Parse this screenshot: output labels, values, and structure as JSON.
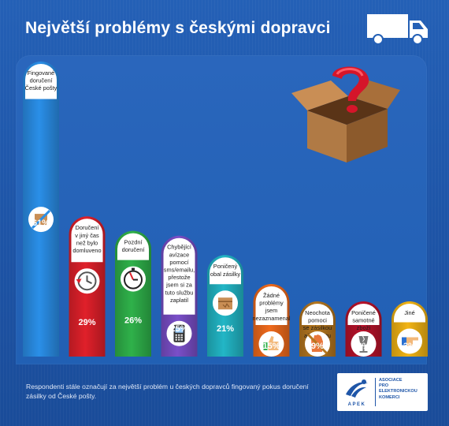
{
  "header": {
    "title": "Největší problémy s českými dopravci"
  },
  "chart_data": {
    "type": "bar",
    "title": "Největší problémy s českými dopravci",
    "xlabel": "",
    "ylabel": "",
    "ylim": [
      0,
      61
    ],
    "categories": [
      [
        "Fingované",
        "doručení",
        "České pošty"
      ],
      [
        "Doručení",
        "v jiný čas",
        "než bylo",
        "domluveno"
      ],
      [
        "Pozdní",
        "doručení"
      ],
      [
        "Chybějící",
        "avízace",
        "pomocí",
        "sms/emailu,",
        "přestože",
        "jsem si za",
        "tuto službu",
        "zaplatil"
      ],
      [
        "Poničený",
        "obal zásilky"
      ],
      [
        "Žádné",
        "problémy",
        "jsem",
        "nezaznamenal"
      ],
      [
        "Neochota",
        "pomoci",
        "se zásilkou",
        "až do bytu"
      ],
      [
        "Poničené",
        "samotné",
        "zboží"
      ],
      [
        "Jiné"
      ]
    ],
    "values": [
      61,
      29,
      26,
      25,
      21,
      15,
      9,
      3,
      3
    ],
    "value_labels": [
      "61%",
      "29%",
      "26%",
      "25%",
      "21%",
      "15%",
      "9%",
      "3%",
      "3%"
    ],
    "colors": [
      "#2a8fe8",
      "#e0202a",
      "#2fb14a",
      "#7a4fc8",
      "#22b6c6",
      "#f06a1c",
      "#b5771f",
      "#b8122a",
      "#f2b414"
    ],
    "icons": [
      "crossed-parcel-icon",
      "clock-icon",
      "stopwatch-icon",
      "mobile-phone-icon",
      "parcel-icon",
      "thumbs-up-icon",
      "stop-hand-icon",
      "broken-glass-icon",
      "pointing-hand-icon"
    ]
  },
  "footer": {
    "note": "Respondenti stále označují za největší problém u českých dopravců fingovaný pokus doručení zásilky od České pošty."
  },
  "logo": {
    "name": "APEK",
    "lines": [
      "Asociace",
      "pro",
      "elektronickou",
      "komerci"
    ]
  }
}
